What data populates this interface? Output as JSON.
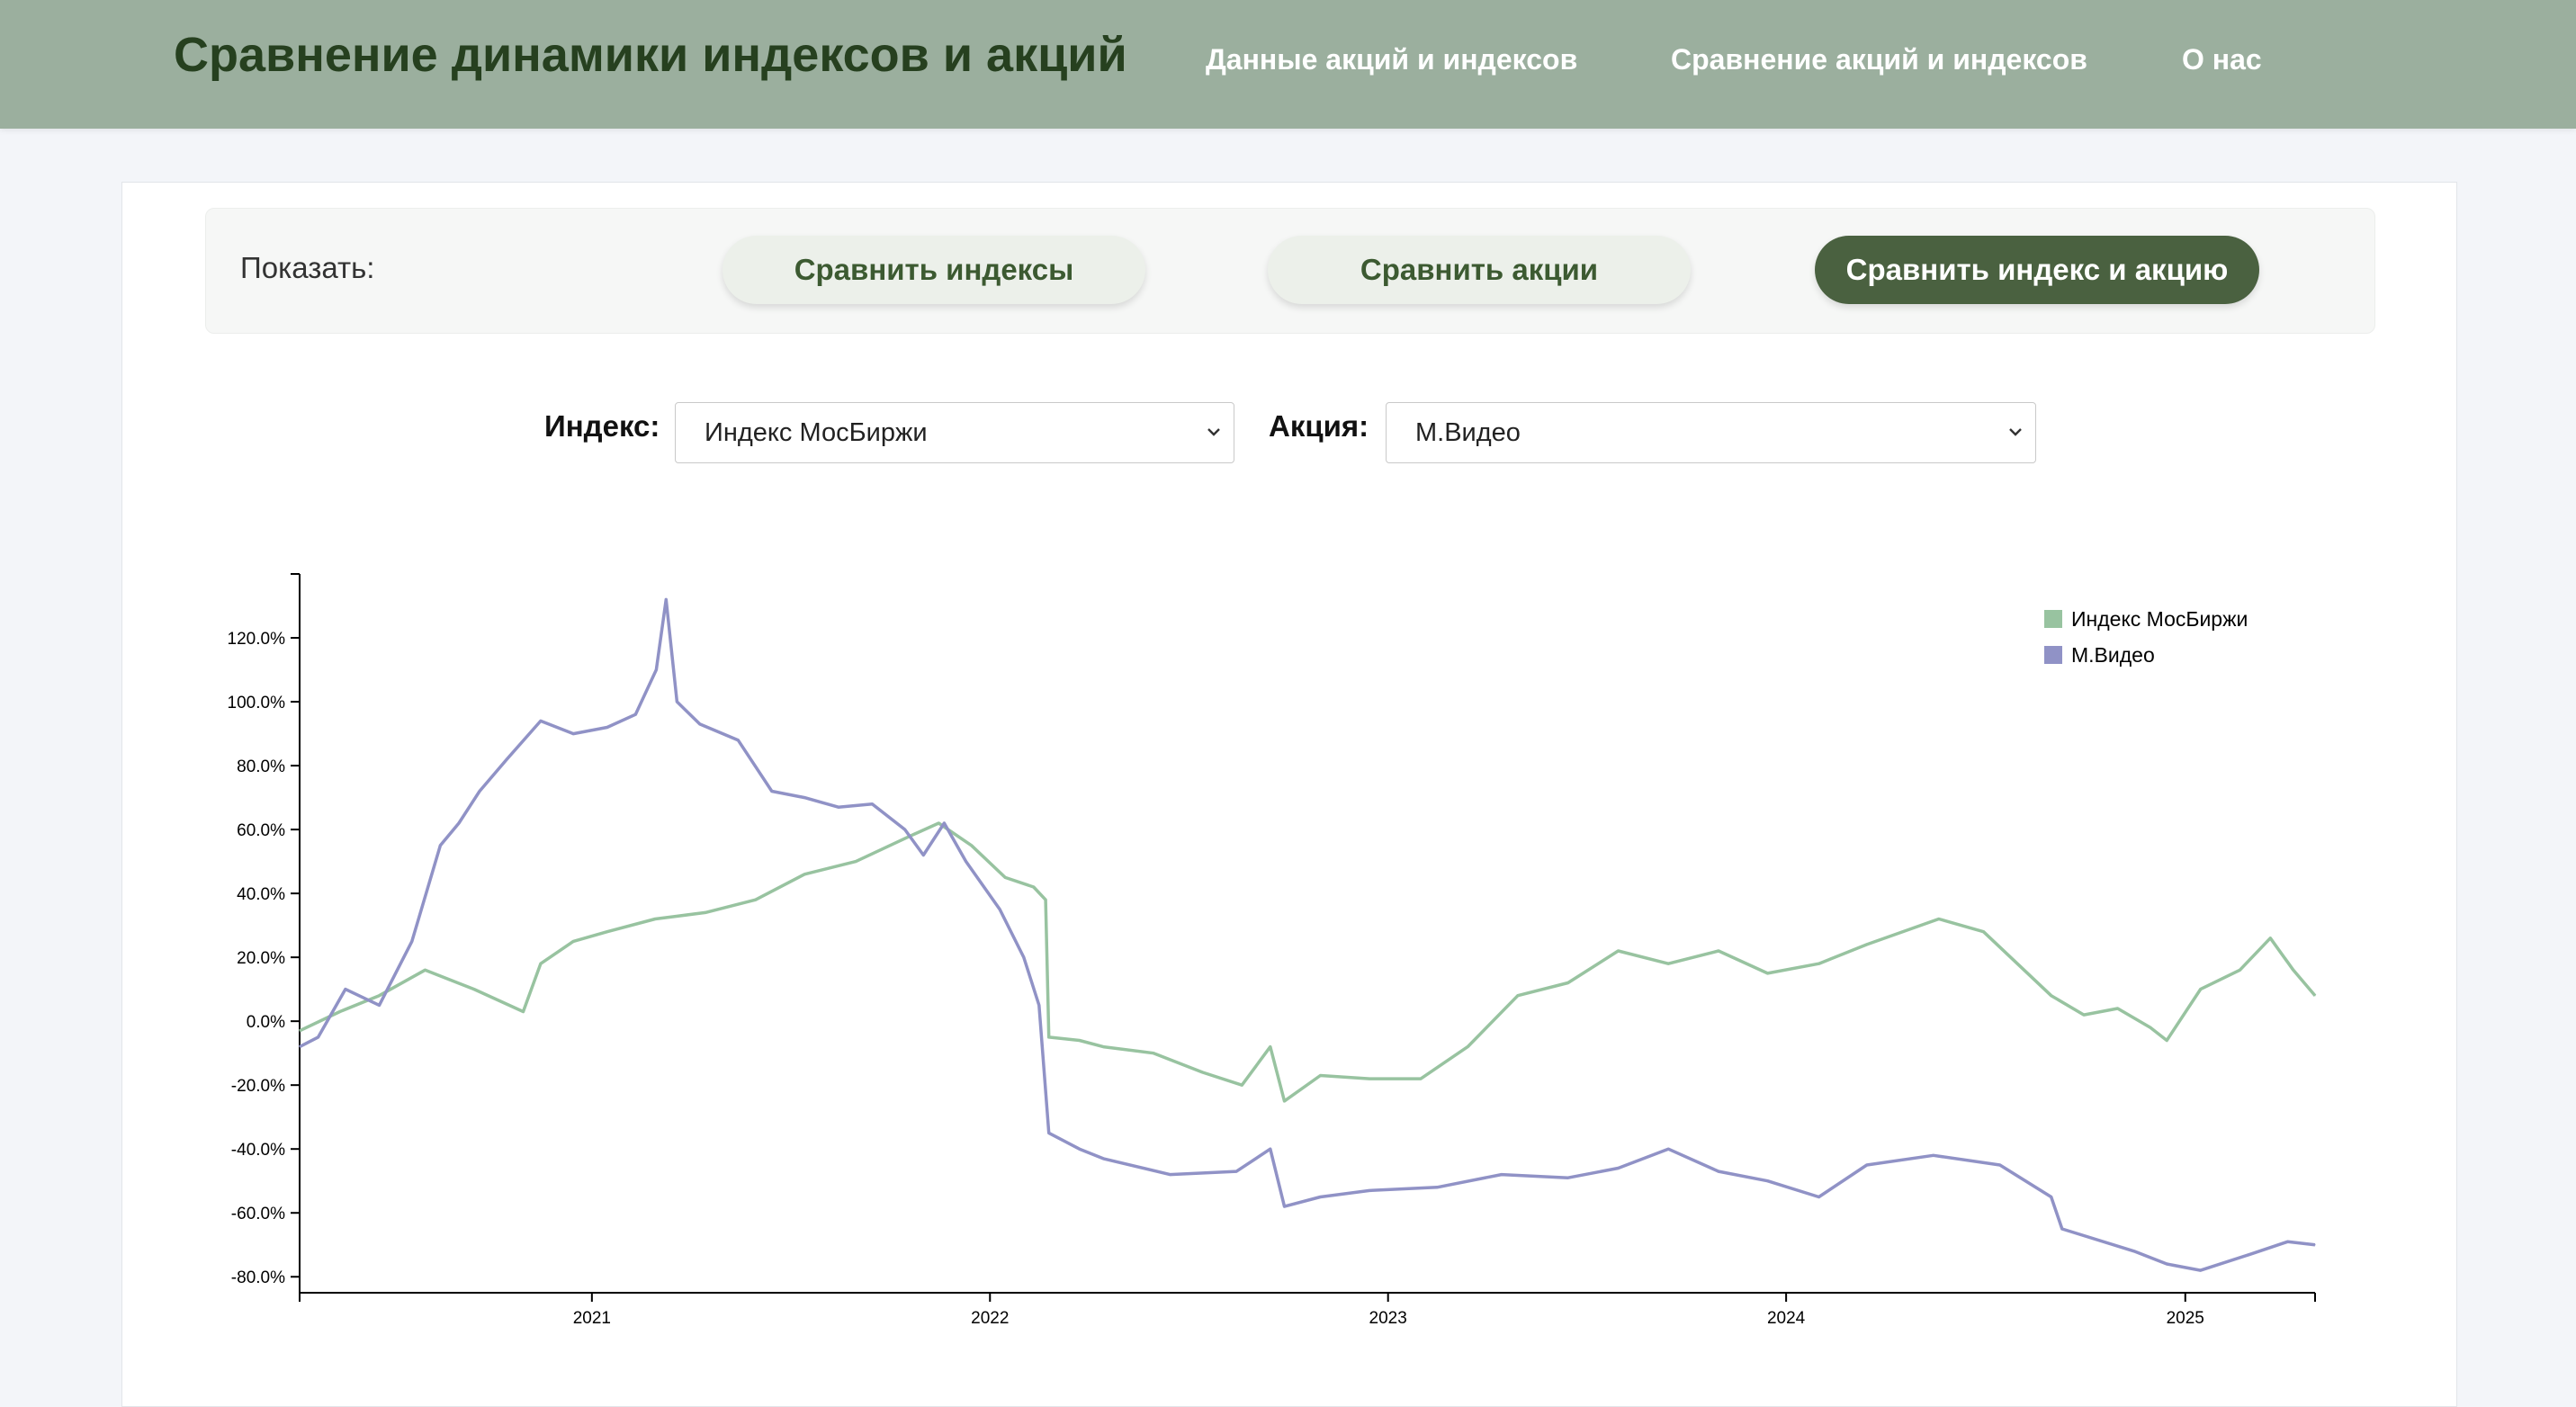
{
  "header": {
    "title": "Сравнение динамики индексов и акций",
    "nav": [
      {
        "label": "Данные акций и индексов"
      },
      {
        "label": "Сравнение акций и индексов"
      },
      {
        "label": "О нас"
      }
    ]
  },
  "controls": {
    "show_label": "Показать:",
    "buttons": [
      {
        "label": "Сравнить индексы",
        "active": false
      },
      {
        "label": "Сравнить акции",
        "active": false
      },
      {
        "label": "Сравнить индекс и акцию",
        "active": true
      }
    ]
  },
  "selectors": {
    "index_label": "Индекс:",
    "index_value": "Индекс МосБиржи",
    "stock_label": "Акция:",
    "stock_value": "М.Видео"
  },
  "colors": {
    "header_bg": "#9baf9e",
    "title": "#26401f",
    "active_button": "#4a6140",
    "index_series": "#98c3a0",
    "stock_series": "#9092c6"
  },
  "chart_data": {
    "type": "line",
    "title": "",
    "xlabel": "",
    "ylabel": "",
    "x_range": [
      "2020-04-08",
      "2025-04-30"
    ],
    "ylim": [
      -85,
      140
    ],
    "y_ticks": [
      -80,
      -60,
      -40,
      -20,
      0,
      20,
      40,
      60,
      80,
      100,
      120
    ],
    "y_tick_labels": [
      "-80.0%",
      "-60.0%",
      "-40.0%",
      "-20.0%",
      "0.0%",
      "20.0%",
      "40.0%",
      "60.0%",
      "80.0%",
      "100.0%",
      "120.0%"
    ],
    "x_ticks": [
      "2021-01-01",
      "2022-01-01",
      "2023-01-01",
      "2024-01-01",
      "2025-01-01"
    ],
    "x_tick_labels": [
      "2021",
      "2022",
      "2023",
      "2024",
      "2025"
    ],
    "legend_position": "top-right",
    "grid": false,
    "series": [
      {
        "name": "Индекс МосБиржи",
        "color": "#98c3a0",
        "x": [
          "2020-04-08",
          "2020-05-15",
          "2020-06-20",
          "2020-08-01",
          "2020-09-15",
          "2020-10-30",
          "2020-11-15",
          "2020-12-15",
          "2021-01-15",
          "2021-02-28",
          "2021-04-15",
          "2021-05-31",
          "2021-07-15",
          "2021-08-31",
          "2021-10-20",
          "2021-11-15",
          "2021-12-15",
          "2022-01-15",
          "2022-02-10",
          "2022-02-21",
          "2022-02-24",
          "2022-03-24",
          "2022-04-15",
          "2022-05-31",
          "2022-07-15",
          "2022-08-20",
          "2022-09-15",
          "2022-09-28",
          "2022-10-31",
          "2022-12-15",
          "2023-01-31",
          "2023-03-15",
          "2023-04-30",
          "2023-06-15",
          "2023-07-31",
          "2023-09-15",
          "2023-10-31",
          "2023-12-15",
          "2024-01-31",
          "2024-03-15",
          "2024-05-20",
          "2024-06-30",
          "2024-07-31",
          "2024-08-31",
          "2024-09-30",
          "2024-10-31",
          "2024-11-30",
          "2024-12-15",
          "2025-01-15",
          "2025-02-20",
          "2025-03-20",
          "2025-04-10",
          "2025-04-30"
        ],
        "y": [
          -3,
          3,
          8,
          16,
          10,
          3,
          18,
          25,
          28,
          32,
          34,
          38,
          46,
          50,
          58,
          62,
          55,
          45,
          42,
          38,
          -5,
          -6,
          -8,
          -10,
          -16,
          -20,
          -8,
          -25,
          -17,
          -18,
          -18,
          -8,
          8,
          12,
          22,
          18,
          22,
          15,
          18,
          24,
          32,
          28,
          18,
          8,
          2,
          4,
          -2,
          -6,
          10,
          16,
          26,
          16,
          8
        ]
      },
      {
        "name": "М.Видео",
        "color": "#9092c6",
        "x": [
          "2020-04-08",
          "2020-04-25",
          "2020-05-20",
          "2020-06-20",
          "2020-07-20",
          "2020-08-15",
          "2020-09-01",
          "2020-09-20",
          "2020-10-15",
          "2020-11-15",
          "2020-12-15",
          "2021-01-15",
          "2021-02-10",
          "2021-03-01",
          "2021-03-10",
          "2021-03-20",
          "2021-04-10",
          "2021-05-15",
          "2021-06-15",
          "2021-07-15",
          "2021-08-15",
          "2021-09-15",
          "2021-10-15",
          "2021-11-01",
          "2021-11-20",
          "2021-12-10",
          "2022-01-10",
          "2022-02-01",
          "2022-02-15",
          "2022-02-24",
          "2022-03-24",
          "2022-04-15",
          "2022-06-15",
          "2022-08-15",
          "2022-09-15",
          "2022-09-28",
          "2022-10-31",
          "2022-12-15",
          "2023-02-15",
          "2023-04-15",
          "2023-06-15",
          "2023-07-31",
          "2023-09-15",
          "2023-10-31",
          "2023-12-15",
          "2024-01-31",
          "2024-03-15",
          "2024-05-15",
          "2024-07-15",
          "2024-08-31",
          "2024-09-10",
          "2024-11-15",
          "2024-12-15",
          "2025-01-15",
          "2025-03-01",
          "2025-04-05",
          "2025-04-30"
        ],
        "y": [
          -8,
          -5,
          10,
          5,
          25,
          55,
          62,
          72,
          82,
          94,
          90,
          92,
          96,
          110,
          132,
          100,
          93,
          88,
          72,
          70,
          67,
          68,
          60,
          52,
          62,
          50,
          35,
          20,
          5,
          -35,
          -40,
          -43,
          -48,
          -47,
          -40,
          -58,
          -55,
          -53,
          -52,
          -48,
          -49,
          -46,
          -40,
          -47,
          -50,
          -55,
          -45,
          -42,
          -45,
          -55,
          -65,
          -72,
          -76,
          -78,
          -73,
          -69,
          -70
        ]
      }
    ]
  }
}
